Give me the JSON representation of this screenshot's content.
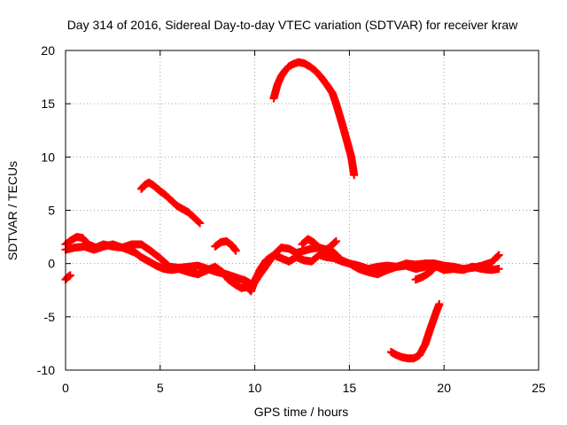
{
  "chart_data": {
    "type": "scatter",
    "title": "Day 314 of 2016, Sidereal Day-to-day VTEC variation (SDTVAR) for receiver kraw",
    "xlabel": "GPS time / hours",
    "ylabel": "SDTVAR / TECUs",
    "xlim": [
      0,
      25
    ],
    "ylim": [
      -10,
      20
    ],
    "xticks": [
      0,
      5,
      10,
      15,
      20,
      25
    ],
    "yticks": [
      -10,
      -5,
      0,
      5,
      10,
      15,
      20
    ],
    "xtick_labels": [
      "0",
      "5",
      "10",
      "15",
      "20",
      "25"
    ],
    "ytick_labels": [
      "-10",
      "-5",
      "0",
      "5",
      "10",
      "15",
      "20"
    ],
    "grid": true,
    "marker": "+",
    "color": "#ff0000",
    "series": [
      {
        "name": "arc-1",
        "x": [
          0.0,
          0.1,
          0.25
        ],
        "y": [
          -1.5,
          -1.3,
          -1.1
        ]
      },
      {
        "name": "arc-2",
        "x": [
          0.0,
          0.3,
          0.6,
          0.9,
          1.2,
          1.6,
          2.0,
          2.5,
          3.0,
          3.5,
          4.0,
          4.5,
          5.0,
          5.5,
          6.0,
          6.5,
          7.0,
          7.5,
          8.0,
          8.5,
          9.0,
          9.5,
          9.9,
          10.2,
          10.6,
          11.0,
          11.4,
          11.8,
          12.2,
          12.6,
          13.0,
          13.4,
          13.8,
          14.2,
          14.6,
          15.0,
          15.5,
          16.0,
          16.5,
          17.0,
          17.5,
          18.0,
          18.5,
          19.0,
          19.5,
          20.0,
          20.5,
          21.0,
          21.5,
          22.0,
          22.5,
          22.9
        ],
        "y": [
          1.8,
          2.2,
          2.5,
          2.4,
          1.8,
          1.5,
          1.8,
          1.6,
          1.5,
          1.8,
          1.8,
          1.2,
          0.5,
          -0.3,
          -0.4,
          -0.3,
          -0.2,
          -0.5,
          -0.8,
          -1.0,
          -1.3,
          -1.6,
          -2.0,
          -1.2,
          -0.2,
          0.8,
          1.5,
          1.4,
          1.0,
          1.2,
          1.4,
          1.5,
          1.3,
          1.0,
          0.3,
          0.0,
          -0.2,
          -0.5,
          -0.3,
          -0.2,
          -0.3,
          0.0,
          -0.1,
          0.0,
          0.0,
          -0.2,
          -0.3,
          -0.5,
          -0.4,
          -0.2,
          0.1,
          0.8
        ]
      },
      {
        "name": "arc-3",
        "x": [
          0.0,
          0.5,
          1.0,
          1.5,
          2.0,
          2.5,
          3.0,
          3.3,
          3.7,
          4.0,
          4.4,
          4.8,
          5.2,
          5.6,
          6.0,
          6.5,
          7.0,
          7.5,
          7.9,
          8.3,
          8.6,
          9.0,
          9.3,
          9.6,
          9.8,
          10.0,
          10.3,
          10.6,
          11.0,
          11.4,
          11.8,
          12.2,
          12.6,
          13.0,
          13.4,
          13.8,
          14.2,
          14.6,
          15.0,
          15.5,
          16.0,
          16.5,
          17.0,
          17.5,
          18.0,
          18.5,
          19.0,
          19.5,
          20.0,
          20.5,
          21.0,
          21.5,
          22.0,
          22.5,
          22.9
        ],
        "y": [
          1.3,
          1.5,
          1.6,
          1.3,
          1.6,
          1.8,
          1.5,
          1.3,
          1.0,
          0.6,
          0.2,
          -0.2,
          -0.5,
          -0.6,
          -0.5,
          -0.8,
          -1.0,
          -0.6,
          -0.3,
          -0.8,
          -1.5,
          -2.0,
          -2.3,
          -2.2,
          -2.6,
          -1.6,
          -0.5,
          0.3,
          0.8,
          0.5,
          0.2,
          0.6,
          0.3,
          0.2,
          0.8,
          0.6,
          0.5,
          0.2,
          0.0,
          -0.5,
          -0.8,
          -1.0,
          -0.6,
          -0.3,
          -0.2,
          -0.5,
          -0.3,
          -0.2,
          -0.6,
          -0.5,
          -0.6,
          -0.3,
          -0.5,
          -0.6,
          -0.5
        ]
      },
      {
        "name": "arc-4",
        "x": [
          4.0,
          4.2,
          4.4,
          4.6,
          4.8,
          5.0,
          5.3,
          5.6,
          5.9,
          6.2,
          6.5,
          6.8,
          7.1
        ],
        "y": [
          7.0,
          7.4,
          7.6,
          7.4,
          7.1,
          6.8,
          6.4,
          5.9,
          5.4,
          5.1,
          4.8,
          4.3,
          3.8
        ]
      },
      {
        "name": "arc-5",
        "x": [
          7.9,
          8.2,
          8.5,
          8.8,
          9.0
        ],
        "y": [
          1.6,
          2.0,
          2.1,
          1.7,
          1.2
        ]
      },
      {
        "name": "arc-6",
        "x": [
          11.0,
          11.2,
          11.4,
          11.6,
          11.8,
          12.0,
          12.3,
          12.6,
          12.9,
          13.2,
          13.5,
          13.8,
          14.1,
          14.3,
          14.5,
          14.7,
          14.9,
          15.1,
          15.25
        ],
        "y": [
          15.5,
          16.8,
          17.6,
          18.1,
          18.5,
          18.7,
          18.9,
          18.8,
          18.5,
          18.1,
          17.5,
          16.8,
          16.0,
          15.0,
          13.8,
          12.6,
          11.3,
          10.0,
          8.3
        ]
      },
      {
        "name": "arc-7",
        "x": [
          12.5,
          12.8,
          13.1,
          13.4,
          13.7,
          14.0,
          14.3
        ],
        "y": [
          1.8,
          2.3,
          2.0,
          1.5,
          1.2,
          1.6,
          2.1
        ]
      },
      {
        "name": "arc-8",
        "x": [
          17.2,
          17.5,
          17.8,
          18.1,
          18.4,
          18.7,
          19.0,
          19.3,
          19.6,
          19.75
        ],
        "y": [
          -8.3,
          -8.6,
          -8.8,
          -8.9,
          -8.9,
          -8.6,
          -7.6,
          -6.0,
          -4.5,
          -3.8
        ]
      },
      {
        "name": "arc-9",
        "x": [
          18.5,
          18.8,
          19.1,
          19.4
        ],
        "y": [
          -1.5,
          -1.3,
          -1.0,
          -0.6
        ]
      }
    ]
  }
}
